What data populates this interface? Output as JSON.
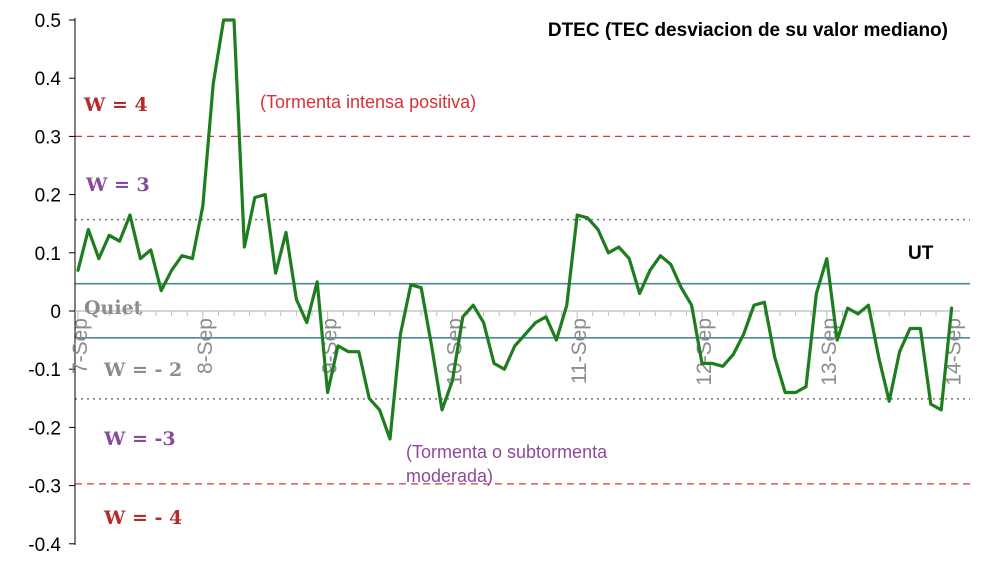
{
  "chart_data": {
    "type": "line",
    "title": "DTEC (TEC desviacion de su valor mediano)",
    "ylim": [
      -0.4,
      0.5
    ],
    "yticks": [
      0.5,
      0.4,
      0.3,
      0.2,
      0.1,
      0,
      -0.1,
      -0.2,
      -0.3,
      -0.4
    ],
    "ytick_labels": [
      "0.5",
      "0.4",
      "0.3",
      "0.2",
      "0.1",
      "0",
      "-0.1",
      "-0.2",
      "-0.3",
      "-0.4"
    ],
    "xtick_labels": [
      "7-Sep",
      "8-Sep",
      "9-Sep",
      "10-Sep",
      "11-Sep",
      "12-Sep",
      "13-Sep",
      "14-Sep"
    ],
    "x_unit_label": "UT",
    "series": [
      {
        "color": "#1e7d1e",
        "x": [
          0.0,
          0.083,
          0.167,
          0.25,
          0.333,
          0.417,
          0.5,
          0.583,
          0.667,
          0.75,
          0.833,
          0.917,
          1.0,
          1.083,
          1.167,
          1.25,
          1.333,
          1.417,
          1.5,
          1.583,
          1.667,
          1.75,
          1.833,
          1.917,
          2.0,
          2.083,
          2.167,
          2.25,
          2.333,
          2.417,
          2.5,
          2.583,
          2.667,
          2.75,
          2.833,
          2.917,
          3.0,
          3.083,
          3.167,
          3.25,
          3.333,
          3.417,
          3.5,
          3.583,
          3.667,
          3.75,
          3.833,
          3.917,
          4.0,
          4.083,
          4.167,
          4.25,
          4.333,
          4.417,
          4.5,
          4.583,
          4.667,
          4.75,
          4.833,
          4.917,
          5.0,
          5.083,
          5.167,
          5.25,
          5.333,
          5.417,
          5.5,
          5.583,
          5.667,
          5.75,
          5.833,
          5.917,
          6.0,
          6.083,
          6.167,
          6.25,
          6.333,
          6.417,
          6.5,
          6.583,
          6.667,
          6.75,
          6.833,
          6.917,
          7.0
        ],
        "y": [
          0.07,
          0.14,
          0.09,
          0.13,
          0.12,
          0.165,
          0.09,
          0.105,
          0.035,
          0.07,
          0.095,
          0.09,
          0.18,
          0.39,
          0.5,
          0.5,
          0.11,
          0.195,
          0.2,
          0.065,
          0.135,
          0.02,
          -0.02,
          0.05,
          -0.14,
          -0.06,
          -0.07,
          -0.07,
          -0.15,
          -0.17,
          -0.22,
          -0.04,
          0.045,
          0.04,
          -0.06,
          -0.17,
          -0.12,
          -0.01,
          0.01,
          -0.02,
          -0.09,
          -0.1,
          -0.06,
          -0.04,
          -0.02,
          -0.01,
          -0.05,
          0.01,
          0.165,
          0.16,
          0.14,
          0.1,
          0.11,
          0.09,
          0.03,
          0.07,
          0.095,
          0.08,
          0.04,
          0.01,
          -0.09,
          -0.09,
          -0.095,
          -0.075,
          -0.04,
          0.01,
          0.015,
          -0.08,
          -0.14,
          -0.14,
          -0.13,
          0.03,
          0.09,
          -0.05,
          0.005,
          -0.005,
          0.01,
          -0.08,
          -0.155,
          -0.07,
          -0.03,
          -0.03,
          -0.16,
          -0.17,
          0.005
        ]
      }
    ],
    "reference_lines": [
      {
        "y": 0.3,
        "style": "dashed",
        "color": "#d43a3a"
      },
      {
        "y": 0.157,
        "style": "dotted",
        "color": "#777777"
      },
      {
        "y": 0.047,
        "style": "solid",
        "color": "#4a8a9a"
      },
      {
        "y": -0.046,
        "style": "solid",
        "color": "#4a8a9a"
      },
      {
        "y": -0.151,
        "style": "dotted",
        "color": "#777777"
      },
      {
        "y": -0.297,
        "style": "dashed",
        "color": "#d43a3a"
      }
    ],
    "annotations": {
      "w4": "W = 4",
      "w3": "W = 3",
      "quiet": "Quiet",
      "wm2": "W = - 2",
      "wm3": "W = -3",
      "wm4": "W = - 4",
      "positive_storm": "(Tormenta intensa positiva)",
      "moderate_storm_line1": "(Tormenta o subtormenta",
      "moderate_storm_line2": "moderada)"
    },
    "colors": {
      "storm_red": "#b52a2a",
      "note_red": "#d6303a",
      "purple": "#8a4a9a",
      "gray": "#8c8c8c",
      "line_green": "#1e7d1e"
    },
    "grid": false,
    "legend": "none"
  }
}
